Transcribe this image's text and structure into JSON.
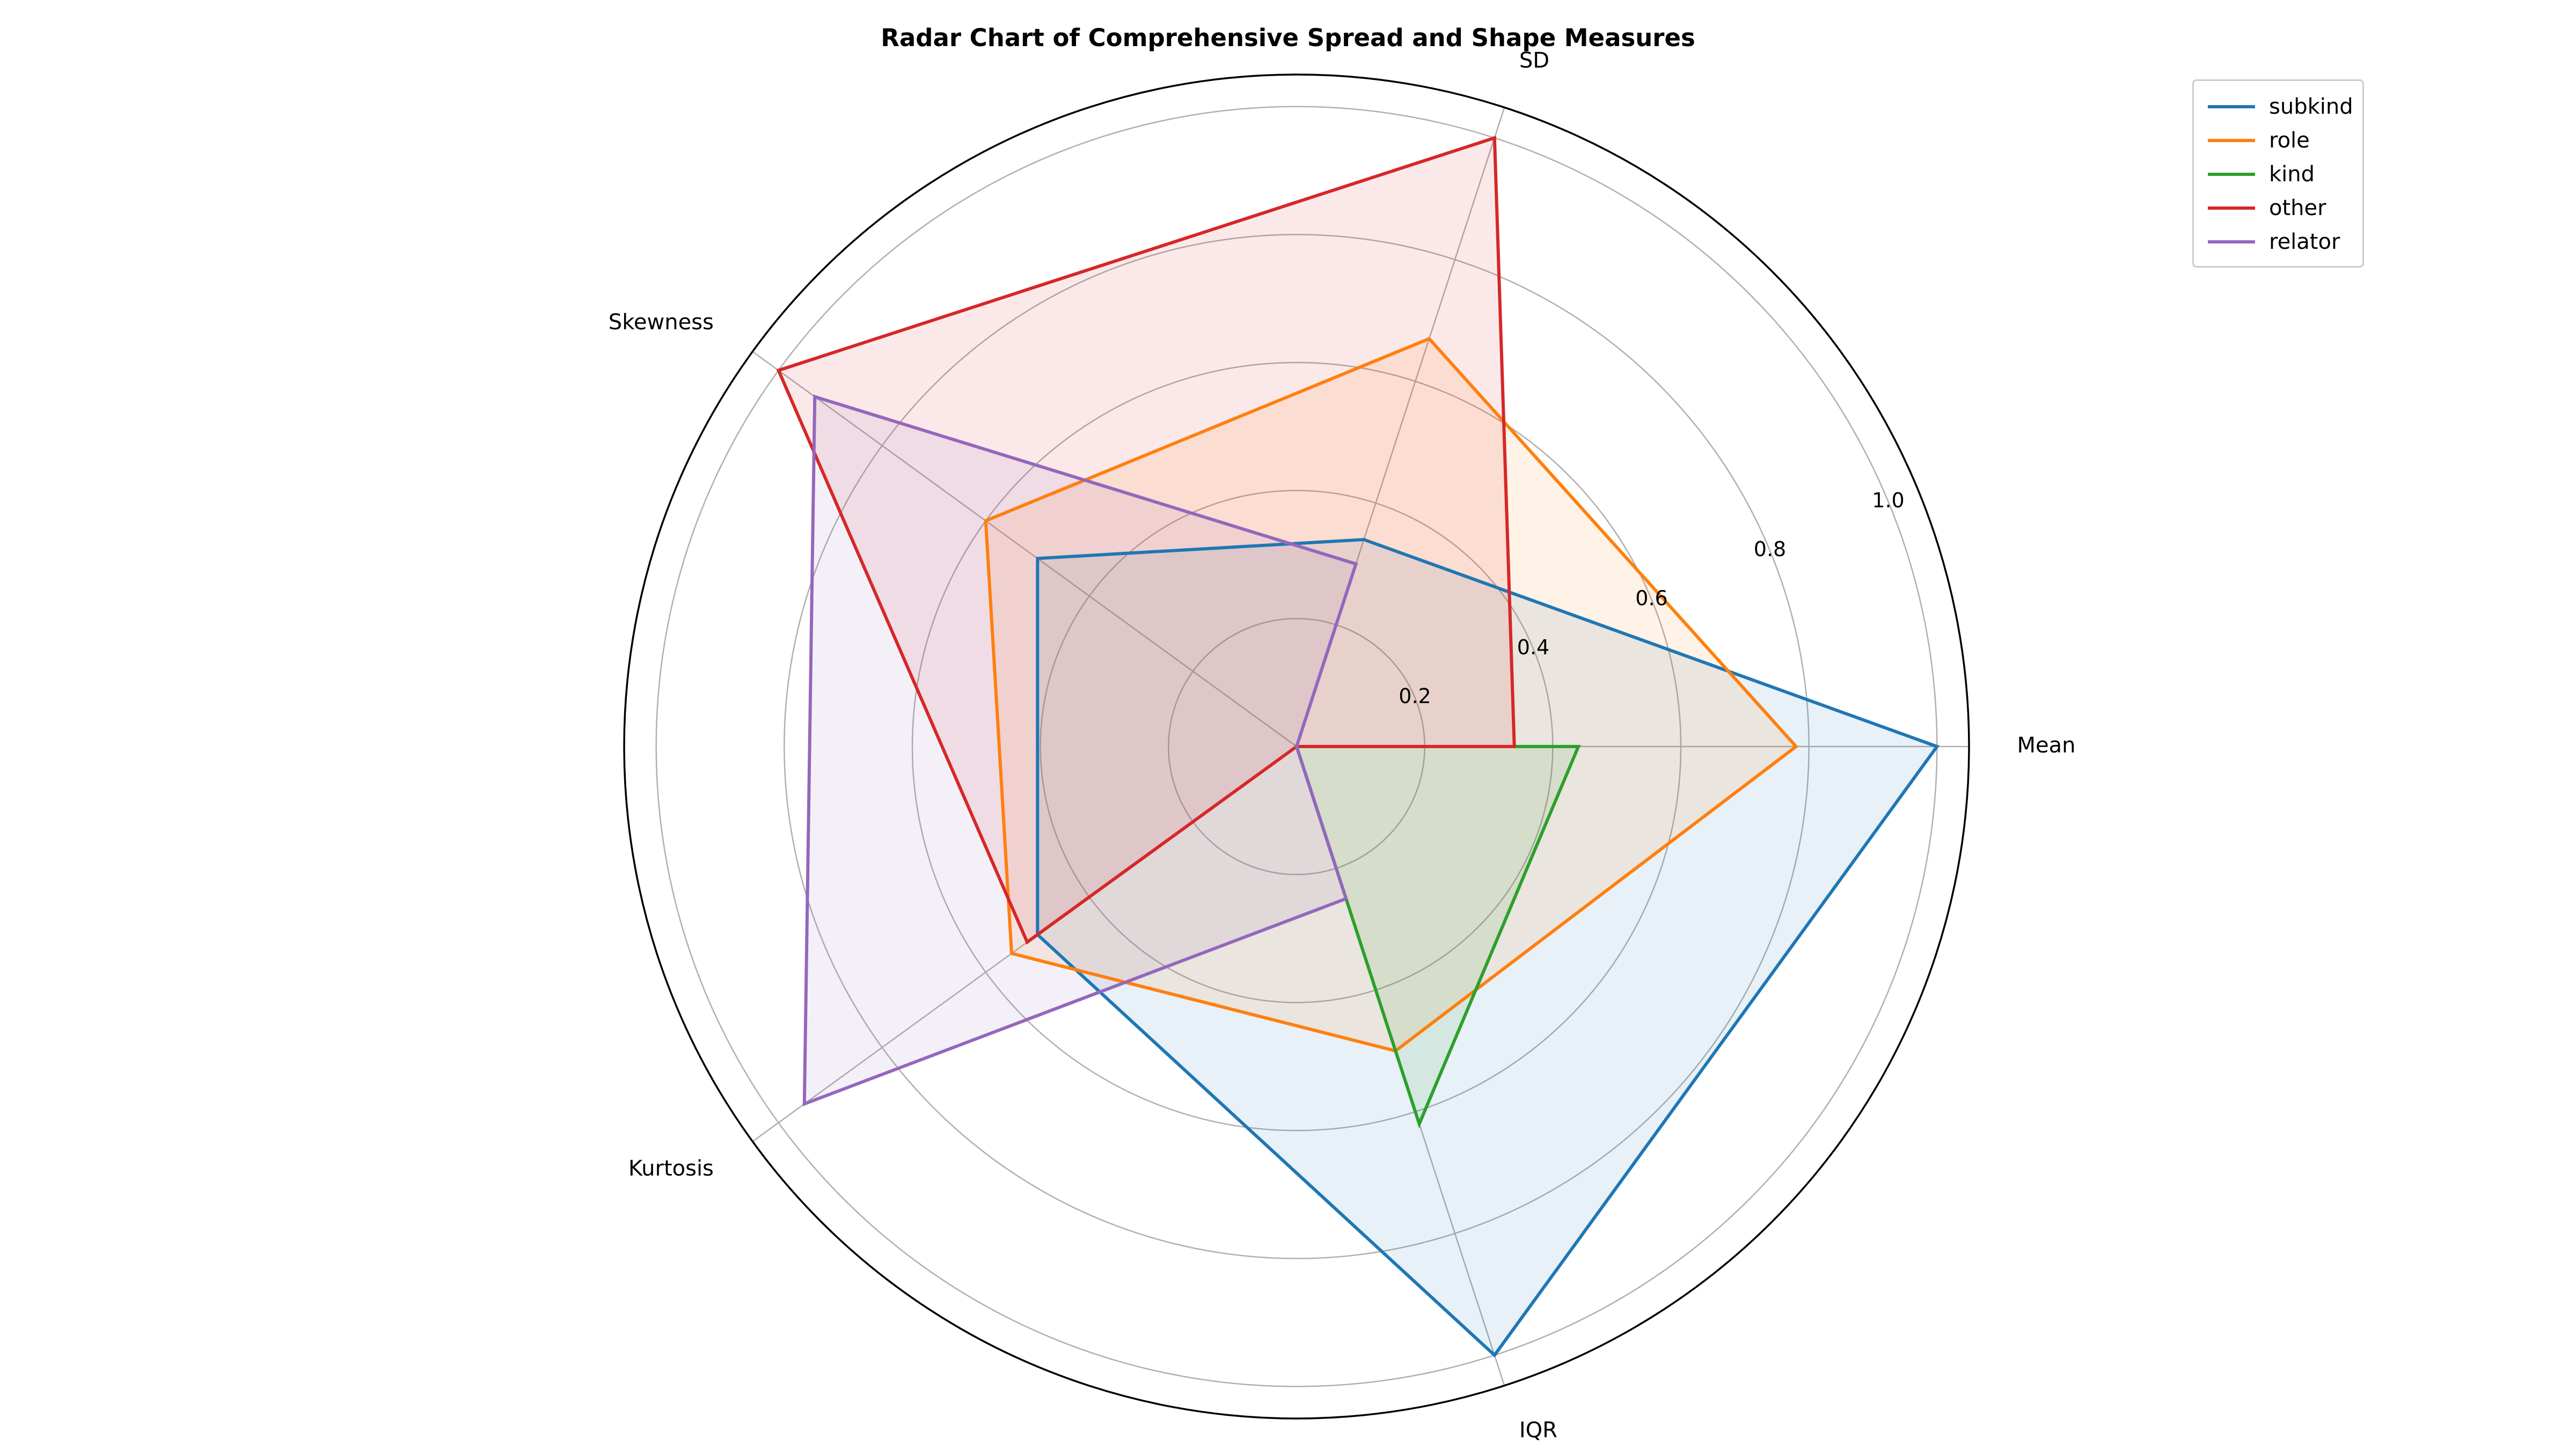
{
  "chart_data": {
    "type": "radar",
    "title": "Radar Chart of Comprehensive Spread and Shape Measures",
    "axes": [
      "Mean",
      "SD",
      "Skewness",
      "Kurtosis",
      "IQR"
    ],
    "rlim": [
      0,
      1.05
    ],
    "rticks": [
      0.2,
      0.4,
      0.6,
      0.8,
      1.0
    ],
    "rtick_labels": [
      "0.2",
      "0.4",
      "0.6",
      "0.8",
      "1.0"
    ],
    "grid": true,
    "legend_position": "top-right",
    "series": [
      {
        "name": "subkind",
        "color": "#1f77b4",
        "values": [
          1.0,
          0.34,
          0.5,
          0.5,
          1.0
        ]
      },
      {
        "name": "role",
        "color": "#ff7f0e",
        "values": [
          0.78,
          0.67,
          0.6,
          0.55,
          0.5
        ]
      },
      {
        "name": "kind",
        "color": "#2ca02c",
        "values": [
          0.44,
          0.0,
          0.0,
          0.0,
          0.62
        ]
      },
      {
        "name": "other",
        "color": "#d62728",
        "values": [
          0.34,
          1.0,
          1.0,
          0.52,
          0.0
        ]
      },
      {
        "name": "relator",
        "color": "#9467bd",
        "values": [
          0.0,
          0.3,
          0.93,
          0.95,
          0.25
        ]
      }
    ]
  }
}
